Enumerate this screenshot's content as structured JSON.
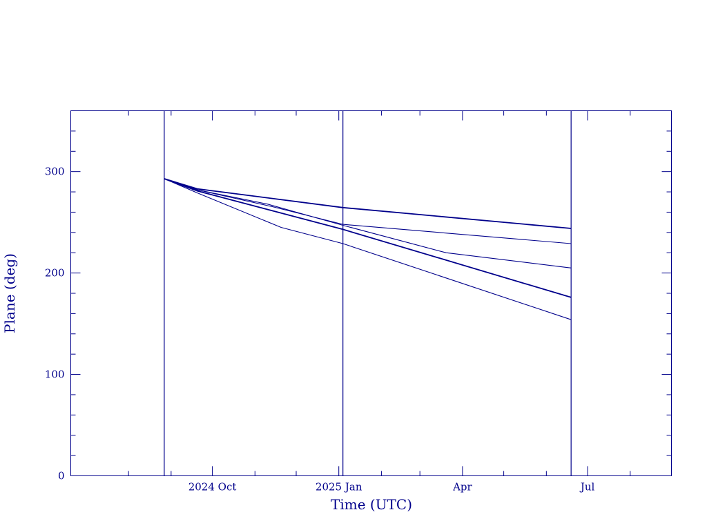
{
  "chart_data": {
    "type": "line",
    "title": "",
    "xlabel": "Time (UTC)",
    "ylabel": "Plane (deg)",
    "xlim": [
      "2024-06-20",
      "2025-08-31"
    ],
    "ylim": [
      0,
      360
    ],
    "x_ticks": [
      {
        "date": "2024-10-01",
        "label": "2024 Oct"
      },
      {
        "date": "2025-01-01",
        "label": "2025 Jan"
      },
      {
        "date": "2025-04-01",
        "label": "Apr"
      },
      {
        "date": "2025-07-01",
        "label": "Jul"
      }
    ],
    "x_minor_ticks": [
      "2024-08-01",
      "2024-09-01",
      "2024-11-01",
      "2024-12-01",
      "2025-02-01",
      "2025-03-01",
      "2025-05-01",
      "2025-06-01",
      "2025-08-01"
    ],
    "y_ticks": [
      0,
      100,
      200,
      300
    ],
    "y_minor_step": 20,
    "vertical_markers": [
      "2024-08-27",
      "2025-01-04",
      "2025-06-19"
    ],
    "grid": false,
    "color": "#00008b",
    "series": [
      {
        "x": [
          "2024-08-27",
          "2024-09-20",
          "2025-01-04",
          "2025-06-19"
        ],
        "y": [
          293,
          283,
          264.5,
          244
        ]
      },
      {
        "x": [
          "2024-08-27",
          "2024-09-20",
          "2024-11-15",
          "2025-01-04",
          "2025-06-19"
        ],
        "y": [
          293,
          282,
          265,
          248,
          229
        ]
      },
      {
        "x": [
          "2024-08-27",
          "2024-09-20",
          "2024-11-10",
          "2025-01-04",
          "2025-03-20",
          "2025-06-19"
        ],
        "y": [
          293,
          282,
          268,
          247,
          220,
          205
        ]
      },
      {
        "x": [
          "2024-08-27",
          "2024-09-20",
          "2025-01-04",
          "2025-06-19"
        ],
        "y": [
          293,
          281,
          243,
          176
        ]
      },
      {
        "x": [
          "2024-08-27",
          "2024-09-20",
          "2024-11-20",
          "2025-01-04",
          "2025-06-19"
        ],
        "y": [
          293,
          279,
          245,
          229,
          154
        ]
      }
    ]
  }
}
